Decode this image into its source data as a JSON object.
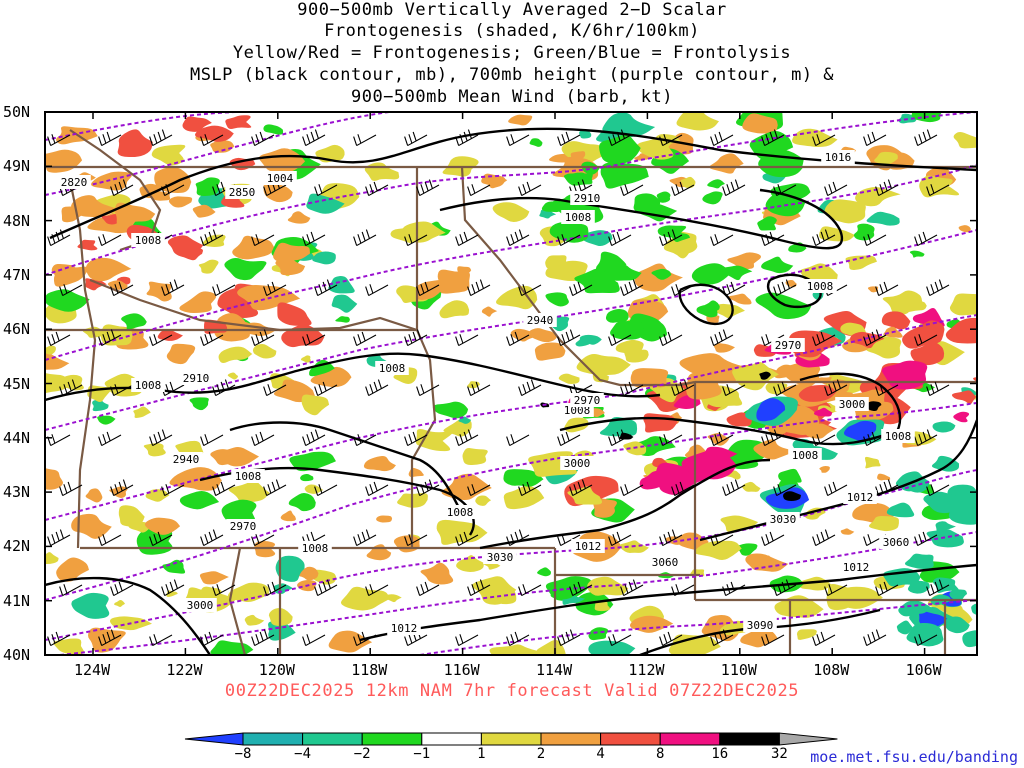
{
  "title_lines": [
    "900−500mb Vertically Averaged 2−D Scalar",
    "Frontogenesis (shaded, K/6hr/100km)",
    "Yellow/Red = Frontogenesis;  Green/Blue = Frontolysis",
    "MSLP (black contour, mb), 700mb height (purple contour, m) &",
    "900−500mb Mean Wind (barb, kt)"
  ],
  "lat_labels": [
    "50N",
    "49N",
    "48N",
    "47N",
    "46N",
    "45N",
    "44N",
    "43N",
    "42N",
    "41N",
    "40N"
  ],
  "lon_labels": [
    "124W",
    "122W",
    "120W",
    "118W",
    "116W",
    "114W",
    "112W",
    "110W",
    "108W",
    "106W"
  ],
  "forecast_label": "00Z22DEC2025 12km NAM 7hr forecast Valid 07Z22DEC2025",
  "credit": "moe.met.fsu.edu/banding",
  "colorbar": {
    "labels": [
      "−8",
      "−4",
      "−2",
      "−1",
      "1",
      "2",
      "4",
      "8",
      "16",
      "32"
    ],
    "colors": [
      "#2040ff",
      "#20b0b0",
      "#20c890",
      "#20d820",
      "#ffffff",
      "#e0d840",
      "#f0a040",
      "#f05040",
      "#f01080",
      "#000000",
      "#a8a8a8"
    ]
  },
  "mslp_labels": [
    "1004",
    "1008",
    "1008",
    "1008",
    "1008",
    "1008",
    "1008",
    "1008",
    "1008",
    "1008",
    "1008",
    "1008",
    "1012",
    "1012",
    "1012",
    "1012",
    "1016"
  ],
  "height_labels": [
    "2820",
    "2850",
    "2910",
    "2910",
    "2940",
    "2940",
    "2970",
    "2970",
    "2970",
    "3000",
    "3000",
    "3000",
    "3030",
    "3030",
    "3060",
    "3060",
    "3090"
  ],
  "map_colors": {
    "frontogenesis_yellow": "#e0d840",
    "frontogenesis_orange": "#f0a040",
    "frontogenesis_red": "#f05040",
    "frontogenesis_magenta": "#f01080",
    "frontolysis_green": "#20d820",
    "frontolysis_teal": "#20c890",
    "frontolysis_blue": "#2040ff",
    "mslp_contour": "#000000",
    "height_contour": "#9a10d0",
    "borders": "#7a5a44"
  }
}
